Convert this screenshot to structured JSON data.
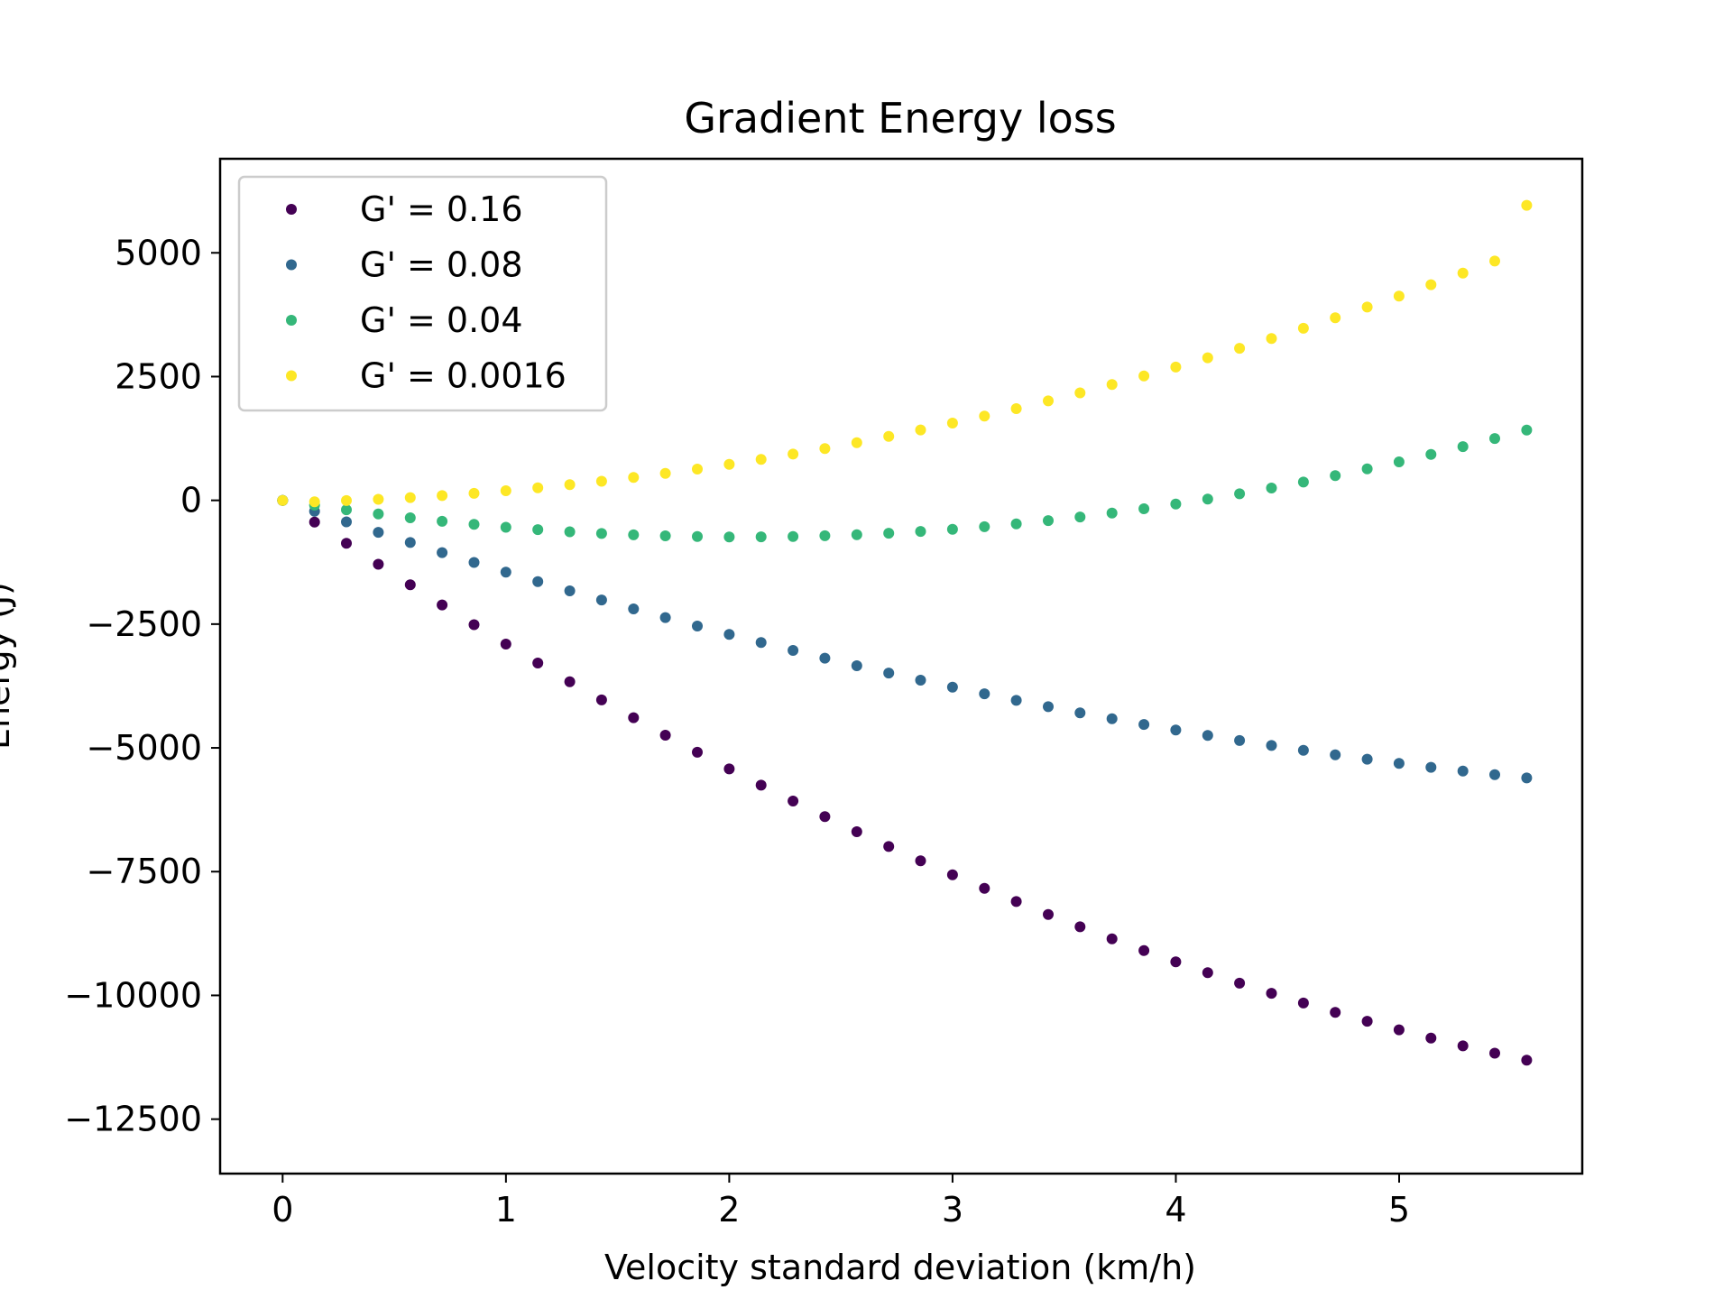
{
  "chart_data": {
    "type": "scatter",
    "title": "Gradient Energy loss",
    "xlabel": "Velocity standard deviation (km/h)",
    "ylabel": "Energy (J)",
    "xlim": [
      -0.28,
      5.82
    ],
    "ylim": [
      -13600,
      6900
    ],
    "xticks": [
      0,
      1,
      2,
      3,
      4,
      5
    ],
    "xtick_labels": [
      "0",
      "1",
      "2",
      "3",
      "4",
      "5"
    ],
    "yticks": [
      5000,
      2500,
      0,
      -2500,
      -5000,
      -7500,
      -10000,
      -12500
    ],
    "ytick_labels": [
      "5000",
      "2500",
      "0",
      "−2500",
      "−5000",
      "−7500",
      "−10000",
      "−12500"
    ],
    "grid": false,
    "legend_position": "top-left",
    "x": [
      0,
      0.1428,
      0.2857,
      0.4285,
      0.5714,
      0.7142,
      0.8571,
      0.9999,
      1.1428,
      1.2856,
      1.4285,
      1.5713,
      1.7142,
      1.857,
      1.9999,
      2.1427,
      2.2856,
      2.4284,
      2.5713,
      2.7141,
      2.857,
      2.9998,
      3.1427,
      3.2855,
      3.4284,
      3.5712,
      3.7141,
      3.8569,
      3.9998,
      4.1426,
      4.2855,
      4.4283,
      4.5712,
      4.714,
      4.8569,
      4.9997,
      5.1426,
      5.2854,
      5.4283,
      5.5711
    ],
    "series": [
      {
        "name": "G' = 0.16",
        "color": "#440154",
        "values": [
          0,
          -438,
          -869,
          -1291,
          -1706,
          -2113,
          -2512,
          -2904,
          -3287,
          -3663,
          -4031,
          -4391,
          -4744,
          -5088,
          -5425,
          -5754,
          -6075,
          -6389,
          -6694,
          -6992,
          -7282,
          -7564,
          -7839,
          -8105,
          -8364,
          -8615,
          -8858,
          -9094,
          -9321,
          -9541,
          -9753,
          -9957,
          -10154,
          -10342,
          -10523,
          -10696,
          -10861,
          -11019,
          -11168,
          -11310
        ]
      },
      {
        "name": "G' = 0.08",
        "color": "#31688e",
        "values": [
          0,
          -219,
          -434,
          -645,
          -852,
          -1055,
          -1255,
          -1450,
          -1642,
          -1829,
          -2013,
          -2193,
          -2368,
          -2540,
          -2708,
          -2872,
          -3032,
          -3188,
          -3340,
          -3488,
          -3632,
          -3772,
          -3908,
          -4040,
          -4168,
          -4292,
          -4412,
          -4528,
          -4640,
          -4748,
          -4852,
          -4952,
          -5048,
          -5140,
          -5228,
          -5312,
          -5392,
          -5468,
          -5540,
          -5608
        ]
      },
      {
        "name": "G' = 0.04",
        "color": "#35b779",
        "values": [
          0,
          -98,
          -190,
          -275,
          -352,
          -423,
          -486,
          -543,
          -592,
          -634,
          -669,
          -697,
          -717,
          -731,
          -738,
          -737,
          -730,
          -715,
          -693,
          -664,
          -627,
          -583,
          -532,
          -474,
          -409,
          -336,
          -257,
          -170,
          -76,
          25,
          133,
          248,
          370,
          499,
          635,
          778,
          928,
          1085,
          1249,
          1420
        ]
      },
      {
        "name": "G' = 0.0016",
        "color": "#fde725",
        "values": [
          0,
          -30,
          -5,
          22,
          56,
          96,
          142,
          194,
          252,
          316,
          386,
          462,
          544,
          632,
          727,
          827,
          934,
          1047,
          1166,
          1291,
          1422,
          1560,
          1703,
          1853,
          2009,
          2171,
          2339,
          2513,
          2693,
          2880,
          3072,
          3271,
          3476,
          3687,
          3904,
          4127,
          4356,
          4592,
          4833,
          5960
        ]
      }
    ]
  }
}
